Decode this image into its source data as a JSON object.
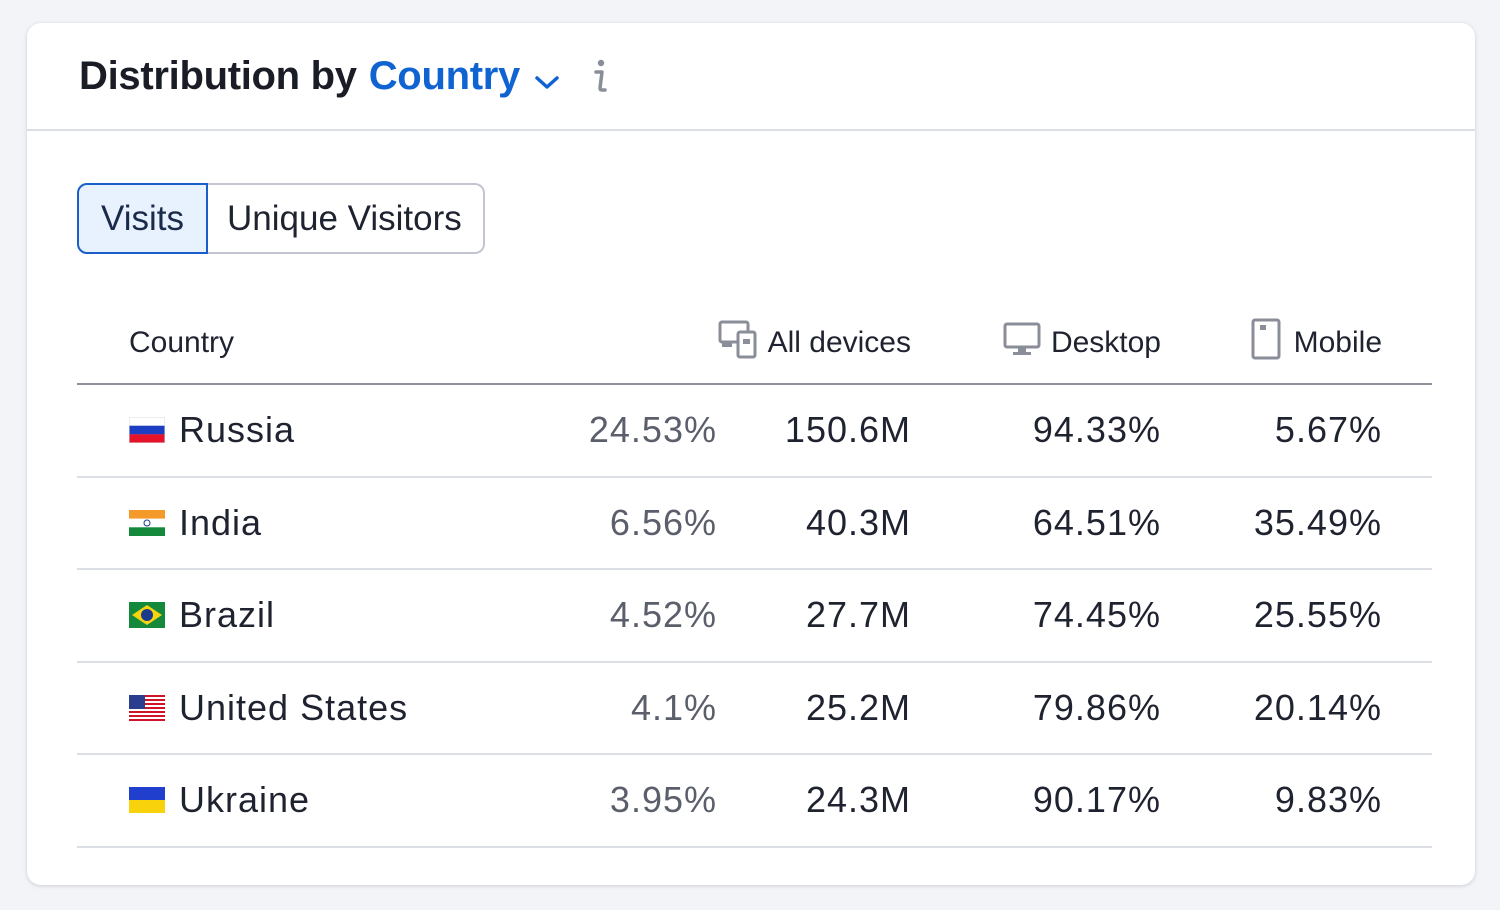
{
  "header": {
    "title_prefix": "Distribution by",
    "dimension": "Country",
    "chevron_icon": "chevron-down-icon",
    "info_icon": "info-icon"
  },
  "tabs": [
    {
      "label": "Visits",
      "active": true
    },
    {
      "label": "Unique Visitors",
      "active": false
    }
  ],
  "table": {
    "columns": {
      "country": "Country",
      "all_devices": "All devices",
      "desktop": "Desktop",
      "mobile": "Mobile"
    },
    "rows": [
      {
        "country": "Russia",
        "flag": "russia-flag-icon",
        "share": "24.53%",
        "all": "150.6M",
        "desktop": "94.33%",
        "mobile": "5.67%"
      },
      {
        "country": "India",
        "flag": "india-flag-icon",
        "share": "6.56%",
        "all": "40.3M",
        "desktop": "64.51%",
        "mobile": "35.49%"
      },
      {
        "country": "Brazil",
        "flag": "brazil-flag-icon",
        "share": "4.52%",
        "all": "27.7M",
        "desktop": "74.45%",
        "mobile": "25.55%"
      },
      {
        "country": "United States",
        "flag": "usa-flag-icon",
        "share": "4.1%",
        "all": "25.2M",
        "desktop": "79.86%",
        "mobile": "20.14%"
      },
      {
        "country": "Ukraine",
        "flag": "ukraine-flag-icon",
        "share": "3.95%",
        "all": "24.3M",
        "desktop": "90.17%",
        "mobile": "9.83%"
      }
    ]
  },
  "colors": {
    "accent": "#0f64d2",
    "active_tab_bg": "#e8f1fe",
    "active_tab_border": "#1a5ec9"
  }
}
